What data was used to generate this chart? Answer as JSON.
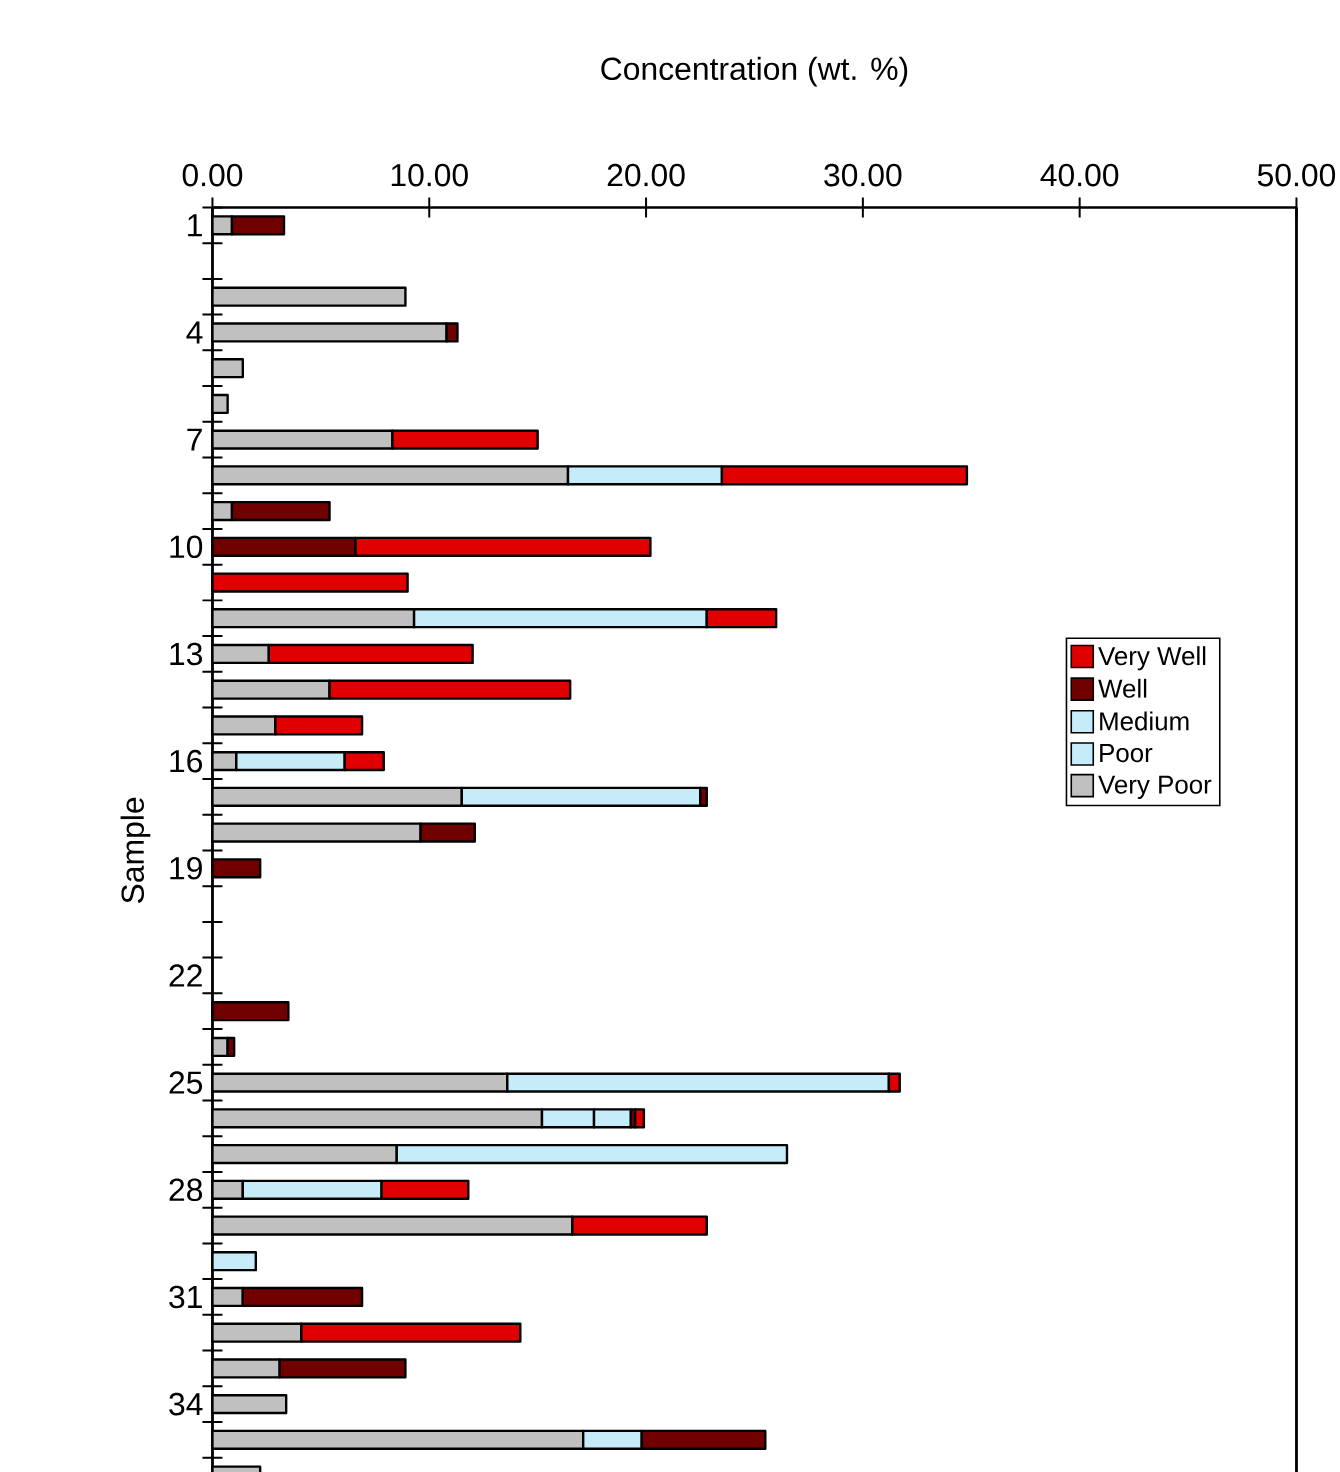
{
  "chart_data": {
    "type": "bar",
    "orientation": "horizontal",
    "stacked": true,
    "xlabel": "Concentration (wt. %)",
    "ylabel": "Sample",
    "categories": [
      "1",
      null,
      null,
      "4",
      null,
      null,
      "7",
      null,
      null,
      "10",
      null,
      null,
      "13",
      null,
      null,
      "16",
      null,
      null,
      "19",
      null,
      null,
      "22",
      null,
      null,
      "25",
      null,
      null,
      "28",
      null,
      null,
      "31",
      null,
      null,
      "34",
      null,
      null
    ],
    "xlim": [
      0,
      50
    ],
    "xticks": [
      {
        "value": 0,
        "label": "0.00"
      },
      {
        "value": 10,
        "label": "10.00"
      },
      {
        "value": 20,
        "label": "20.00"
      },
      {
        "value": 30,
        "label": "30.00"
      },
      {
        "value": 40,
        "label": "40.00"
      },
      {
        "value": 50,
        "label": "50.00"
      }
    ],
    "legend": "right",
    "series": [
      {
        "name": "Very Poor",
        "color": "#c0c0c0",
        "values": [
          0.9,
          null,
          8.9,
          10.8,
          1.4,
          0.7,
          8.3,
          16.4,
          0.9,
          null,
          null,
          9.3,
          2.6,
          5.4,
          2.9,
          1.1,
          11.5,
          9.6,
          null,
          null,
          null,
          null,
          null,
          0.7,
          13.6,
          15.2,
          8.5,
          1.4,
          16.6,
          null,
          1.4,
          4.1,
          3.1,
          3.4,
          17.1,
          2.2
        ]
      },
      {
        "name": "Poor",
        "color": "#c6ecfa",
        "values": [
          null,
          null,
          null,
          null,
          null,
          null,
          null,
          7.1,
          null,
          null,
          null,
          13.5,
          null,
          null,
          null,
          5.0,
          11.0,
          null,
          null,
          null,
          null,
          null,
          null,
          null,
          17.6,
          2.4,
          18.0,
          6.4,
          null,
          2.0,
          null,
          null,
          null,
          null,
          2.7,
          null
        ]
      },
      {
        "name": "Medium",
        "color": "#c6ecfa",
        "values": [
          null,
          null,
          null,
          null,
          null,
          null,
          null,
          null,
          null,
          null,
          null,
          null,
          null,
          null,
          null,
          null,
          null,
          null,
          null,
          null,
          null,
          null,
          null,
          null,
          null,
          1.7,
          null,
          null,
          null,
          null,
          null,
          null,
          null,
          null,
          null,
          null
        ]
      },
      {
        "name": "Well",
        "color": "#700000",
        "values": [
          2.4,
          null,
          null,
          0.5,
          null,
          null,
          null,
          null,
          4.5,
          6.6,
          null,
          null,
          null,
          null,
          null,
          null,
          0.3,
          2.5,
          2.2,
          null,
          null,
          null,
          3.5,
          0.3,
          null,
          0.2,
          null,
          null,
          null,
          null,
          5.5,
          null,
          5.8,
          null,
          5.7,
          null
        ]
      },
      {
        "name": "Very Well",
        "color": "#e00000",
        "values": [
          null,
          null,
          null,
          null,
          null,
          null,
          6.7,
          11.3,
          null,
          13.6,
          9.0,
          3.2,
          9.4,
          11.1,
          4.0,
          1.8,
          null,
          null,
          null,
          null,
          null,
          null,
          null,
          null,
          0.5,
          0.4,
          null,
          4.0,
          6.2,
          null,
          null,
          10.1,
          null,
          null,
          null,
          null
        ]
      }
    ]
  }
}
